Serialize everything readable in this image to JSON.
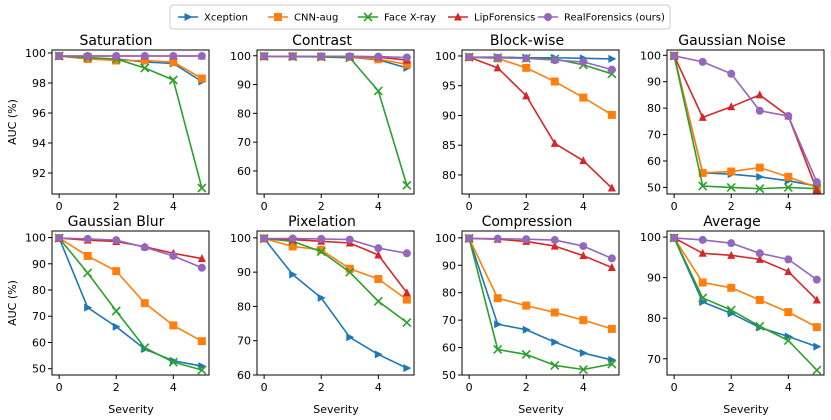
{
  "legend": [
    {
      "name": "Xception",
      "color": "#1f77b4",
      "marker": "triangle-right"
    },
    {
      "name": "CNN-aug",
      "color": "#ff7f0e",
      "marker": "square"
    },
    {
      "name": "Face X-ray",
      "color": "#2ca02c",
      "marker": "x"
    },
    {
      "name": "LipForensics",
      "color": "#d62728",
      "marker": "triangle-up"
    },
    {
      "name": "RealForensics (ours)",
      "color": "#9467bd",
      "marker": "circle"
    }
  ],
  "chart_data": [
    {
      "type": "line",
      "title": "Saturation",
      "xlabel": "",
      "ylabel": "AUC (%)",
      "x": [
        0,
        1,
        2,
        3,
        4,
        5
      ],
      "xlim": [
        -0.25,
        5.25
      ],
      "ylim": [
        90.6,
        100.2
      ],
      "xticks": [
        0,
        2,
        4
      ],
      "yticks": [
        92,
        94,
        96,
        98,
        100
      ],
      "series": [
        {
          "name": "Xception",
          "values": [
            99.8,
            99.6,
            99.6,
            99.4,
            99.3,
            98.1
          ]
        },
        {
          "name": "CNN-aug",
          "values": [
            99.8,
            99.6,
            99.5,
            99.5,
            99.4,
            98.3
          ]
        },
        {
          "name": "Face X-ray",
          "values": [
            99.8,
            99.7,
            99.6,
            99.0,
            98.2,
            91.0
          ]
        },
        {
          "name": "LipForensics",
          "values": [
            99.8,
            99.8,
            99.8,
            99.8,
            99.8,
            99.8
          ]
        },
        {
          "name": "RealForensics (ours)",
          "values": [
            99.8,
            99.8,
            99.8,
            99.8,
            99.8,
            99.8
          ]
        }
      ]
    },
    {
      "type": "line",
      "title": "Contrast",
      "xlabel": "",
      "ylabel": "",
      "x": [
        0,
        1,
        2,
        3,
        4,
        5
      ],
      "xlim": [
        -0.25,
        5.25
      ],
      "ylim": [
        52,
        102
      ],
      "xticks": [
        0,
        2,
        4
      ],
      "yticks": [
        60,
        70,
        80,
        90,
        100
      ],
      "series": [
        {
          "name": "Xception",
          "values": [
            99.8,
            99.8,
            99.7,
            99.5,
            98.6,
            95.8
          ]
        },
        {
          "name": "CNN-aug",
          "values": [
            99.8,
            99.8,
            99.7,
            99.6,
            98.8,
            97.0
          ]
        },
        {
          "name": "Face X-ray",
          "values": [
            99.8,
            99.7,
            99.6,
            99.3,
            87.8,
            55.0
          ]
        },
        {
          "name": "LipForensics",
          "values": [
            99.8,
            99.8,
            99.8,
            99.8,
            99.5,
            98.5
          ]
        },
        {
          "name": "RealForensics (ours)",
          "values": [
            99.8,
            99.8,
            99.8,
            99.8,
            99.7,
            99.4
          ]
        }
      ]
    },
    {
      "type": "line",
      "title": "Block-wise",
      "xlabel": "",
      "ylabel": "",
      "x": [
        0,
        1,
        2,
        3,
        4,
        5
      ],
      "xlim": [
        -0.25,
        5.25
      ],
      "ylim": [
        76.8,
        101
      ],
      "xticks": [
        0,
        2,
        4
      ],
      "yticks": [
        80,
        85,
        90,
        95,
        100
      ],
      "series": [
        {
          "name": "Xception",
          "values": [
            99.8,
            99.8,
            99.7,
            99.7,
            99.6,
            99.5
          ]
        },
        {
          "name": "CNN-aug",
          "values": [
            99.8,
            99.6,
            98.0,
            95.7,
            93.0,
            90.1
          ]
        },
        {
          "name": "Face X-ray",
          "values": [
            99.8,
            99.7,
            99.6,
            99.5,
            98.5,
            97.0
          ]
        },
        {
          "name": "LipForensics",
          "values": [
            99.8,
            98.0,
            93.3,
            85.3,
            82.4,
            77.8
          ]
        },
        {
          "name": "RealForensics (ours)",
          "values": [
            99.8,
            99.7,
            99.6,
            99.3,
            99.0,
            97.7
          ]
        }
      ]
    },
    {
      "type": "line",
      "title": "Gaussian Noise",
      "xlabel": "",
      "ylabel": "",
      "x": [
        0,
        1,
        2,
        3,
        4,
        5
      ],
      "xlim": [
        -0.25,
        5.25
      ],
      "ylim": [
        47.5,
        102
      ],
      "xticks": [
        0,
        2,
        4
      ],
      "yticks": [
        50,
        60,
        70,
        80,
        90,
        100
      ],
      "series": [
        {
          "name": "Xception",
          "values": [
            99.8,
            55.5,
            55.0,
            54.0,
            52.5,
            50.5
          ]
        },
        {
          "name": "CNN-aug",
          "values": [
            99.8,
            55.5,
            56.0,
            57.5,
            54.0,
            50.0
          ]
        },
        {
          "name": "Face X-ray",
          "values": [
            99.8,
            50.5,
            50.0,
            49.5,
            50.0,
            49.5
          ]
        },
        {
          "name": "LipForensics",
          "values": [
            99.8,
            76.5,
            80.5,
            85.0,
            77.0,
            49.0
          ]
        },
        {
          "name": "RealForensics (ours)",
          "values": [
            99.8,
            97.5,
            93.0,
            79.0,
            77.0,
            52.0
          ]
        }
      ]
    },
    {
      "type": "line",
      "title": "Gaussian Blur",
      "xlabel": "Severity",
      "ylabel": "AUC (%)",
      "x": [
        0,
        1,
        2,
        3,
        4,
        5
      ],
      "xlim": [
        -0.25,
        5.25
      ],
      "ylim": [
        47.6,
        102.5
      ],
      "xticks": [
        0,
        2,
        4
      ],
      "yticks": [
        50,
        60,
        70,
        80,
        90,
        100
      ],
      "series": [
        {
          "name": "Xception",
          "values": [
            99.8,
            73.3,
            66.0,
            57.5,
            53.0,
            51.0
          ]
        },
        {
          "name": "CNN-aug",
          "values": [
            99.8,
            93.0,
            87.2,
            75.0,
            66.5,
            60.5
          ]
        },
        {
          "name": "Face X-ray",
          "values": [
            99.8,
            86.5,
            72.0,
            58.0,
            52.5,
            49.5
          ]
        },
        {
          "name": "LipForensics",
          "values": [
            99.8,
            99.0,
            98.5,
            96.5,
            94.0,
            92.0
          ]
        },
        {
          "name": "RealForensics (ours)",
          "values": [
            99.8,
            99.5,
            99.0,
            96.3,
            93.0,
            88.5
          ]
        }
      ]
    },
    {
      "type": "line",
      "title": "Pixelation",
      "xlabel": "Severity",
      "ylabel": "",
      "x": [
        0,
        1,
        2,
        3,
        4,
        5
      ],
      "xlim": [
        -0.25,
        5.25
      ],
      "ylim": [
        60,
        102
      ],
      "xticks": [
        0,
        2,
        4
      ],
      "yticks": [
        60,
        70,
        80,
        90,
        100
      ],
      "series": [
        {
          "name": "Xception",
          "values": [
            99.8,
            89.3,
            82.5,
            71.0,
            66.0,
            62.0
          ]
        },
        {
          "name": "CNN-aug",
          "values": [
            99.8,
            97.5,
            96.5,
            91.0,
            88.0,
            82.0
          ]
        },
        {
          "name": "Face X-ray",
          "values": [
            99.8,
            99.0,
            96.0,
            90.0,
            81.5,
            75.3
          ]
        },
        {
          "name": "LipForensics",
          "values": [
            99.8,
            99.5,
            99.0,
            98.5,
            95.0,
            84.0
          ]
        },
        {
          "name": "RealForensics (ours)",
          "values": [
            99.8,
            99.8,
            99.7,
            99.5,
            97.0,
            95.5
          ]
        }
      ]
    },
    {
      "type": "line",
      "title": "Compression",
      "xlabel": "Severity",
      "ylabel": "",
      "x": [
        0,
        1,
        2,
        3,
        4,
        5
      ],
      "xlim": [
        -0.25,
        5.25
      ],
      "ylim": [
        50,
        102.5
      ],
      "xticks": [
        0,
        2,
        4
      ],
      "yticks": [
        50,
        60,
        70,
        80,
        90,
        100
      ],
      "series": [
        {
          "name": "Xception",
          "values": [
            99.8,
            68.5,
            66.5,
            62.0,
            58.0,
            55.5
          ]
        },
        {
          "name": "CNN-aug",
          "values": [
            99.8,
            78.0,
            75.3,
            72.8,
            70.0,
            66.8
          ]
        },
        {
          "name": "Face X-ray",
          "values": [
            99.8,
            59.3,
            57.5,
            53.5,
            52.0,
            54.0
          ]
        },
        {
          "name": "LipForensics",
          "values": [
            99.8,
            99.5,
            98.7,
            97.0,
            93.5,
            89.2
          ]
        },
        {
          "name": "RealForensics (ours)",
          "values": [
            99.8,
            99.7,
            99.5,
            99.2,
            97.0,
            92.5
          ]
        }
      ]
    },
    {
      "type": "line",
      "title": "Average",
      "xlabel": "Severity",
      "ylabel": "",
      "x": [
        0,
        1,
        2,
        3,
        4,
        5
      ],
      "xlim": [
        -0.25,
        5.25
      ],
      "ylim": [
        66,
        101.5
      ],
      "xticks": [
        0,
        2,
        4
      ],
      "yticks": [
        70,
        80,
        90,
        100
      ],
      "series": [
        {
          "name": "Xception",
          "values": [
            99.8,
            84.0,
            81.2,
            77.7,
            75.5,
            73.0
          ]
        },
        {
          "name": "CNN-aug",
          "values": [
            99.8,
            88.8,
            87.5,
            84.5,
            81.5,
            77.8
          ]
        },
        {
          "name": "Face X-ray",
          "values": [
            99.8,
            85.0,
            82.0,
            78.0,
            74.5,
            67.2
          ]
        },
        {
          "name": "LipForensics",
          "values": [
            99.8,
            96.0,
            95.5,
            94.5,
            91.5,
            84.5
          ]
        },
        {
          "name": "RealForensics (ours)",
          "values": [
            99.8,
            99.3,
            98.5,
            96.0,
            94.5,
            89.5
          ]
        }
      ]
    }
  ]
}
